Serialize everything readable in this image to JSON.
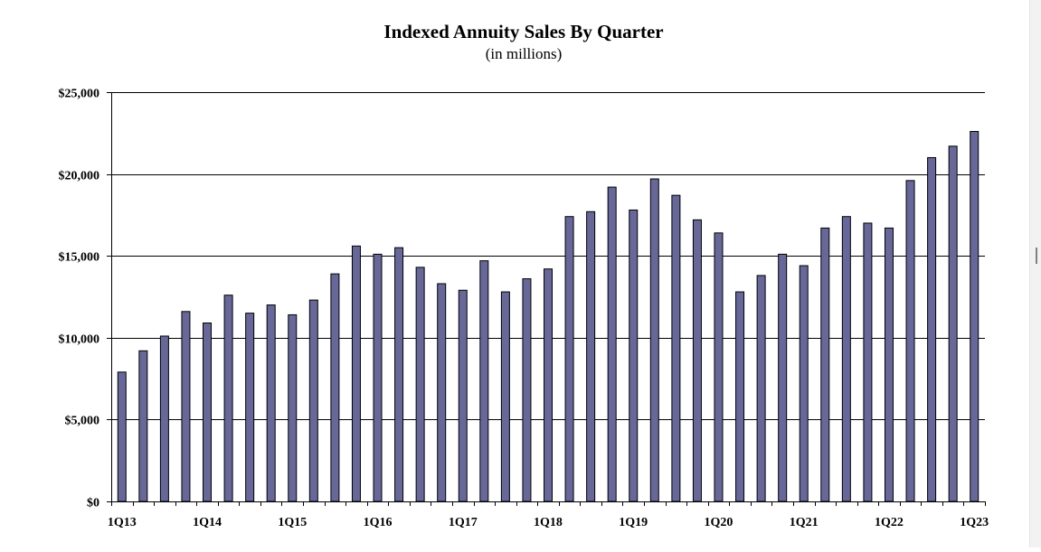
{
  "chart_data": {
    "type": "bar",
    "title": "Indexed Annuity Sales By Quarter",
    "subtitle": "(in millions)",
    "xlabel": "",
    "ylabel": "",
    "ylim": [
      0,
      25000
    ],
    "yticks": [
      0,
      5000,
      10000,
      15000,
      20000,
      25000
    ],
    "ytick_labels": [
      "$0",
      "$5,000",
      "$10,000",
      "$15,000",
      "$20,000",
      "$25,000"
    ],
    "xtick_labels": [
      "1Q13",
      "1Q14",
      "1Q15",
      "1Q16",
      "1Q17",
      "1Q18",
      "1Q19",
      "1Q20",
      "1Q21",
      "1Q22",
      "1Q23"
    ],
    "grid": true,
    "bar_color": "#67679a",
    "categories": [
      "1Q13",
      "2Q13",
      "3Q13",
      "4Q13",
      "1Q14",
      "2Q14",
      "3Q14",
      "4Q14",
      "1Q15",
      "2Q15",
      "3Q15",
      "4Q15",
      "1Q16",
      "2Q16",
      "3Q16",
      "4Q16",
      "1Q17",
      "2Q17",
      "3Q17",
      "4Q17",
      "1Q18",
      "2Q18",
      "3Q18",
      "4Q18",
      "1Q19",
      "2Q19",
      "3Q19",
      "4Q19",
      "1Q20",
      "2Q20",
      "3Q20",
      "4Q20",
      "1Q21",
      "2Q21",
      "3Q21",
      "4Q21",
      "1Q22",
      "2Q22",
      "3Q22",
      "4Q22",
      "1Q23"
    ],
    "values": [
      7900,
      9200,
      10100,
      11600,
      10900,
      12600,
      11500,
      12000,
      11400,
      12300,
      13900,
      15600,
      15100,
      15500,
      14300,
      13300,
      12900,
      14700,
      12800,
      13600,
      14200,
      17400,
      17700,
      19200,
      17800,
      19700,
      18700,
      17200,
      16400,
      12800,
      13800,
      15100,
      14400,
      16700,
      17400,
      17000,
      16700,
      19600,
      21000,
      21700,
      22600
    ]
  }
}
